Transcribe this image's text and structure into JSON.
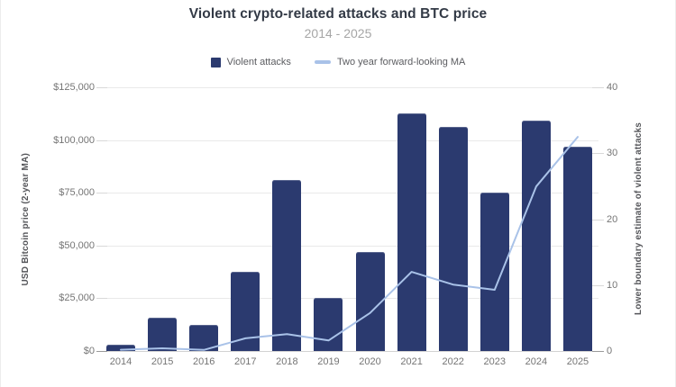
{
  "chart_data": {
    "type": "bar+line",
    "title": "Violent crypto-related attacks and BTC price",
    "subtitle": "2014 - 2025",
    "categories": [
      "2014",
      "2015",
      "2016",
      "2017",
      "2018",
      "2019",
      "2020",
      "2021",
      "2022",
      "2023",
      "2024",
      "2025"
    ],
    "series": [
      {
        "name": "Violent attacks",
        "type": "bar",
        "axis": "right",
        "color": "#2b3a6f",
        "values": [
          1,
          5,
          4,
          12,
          26,
          8,
          15,
          36,
          34,
          24,
          35,
          31
        ]
      },
      {
        "name": "Two year forward-looking MA",
        "type": "line",
        "axis": "left",
        "color": "#a9c2e8",
        "values": [
          600,
          1300,
          500,
          6000,
          8000,
          5000,
          18000,
          37500,
          31500,
          29000,
          78000,
          101500
        ]
      }
    ],
    "left_axis": {
      "label": "USD Bitcoin price (2-year MA)",
      "ticks": [
        "$125,000",
        "$100,000",
        "$75,000",
        "$50,000",
        "$25,000",
        "$0"
      ],
      "min": 0,
      "max": 125000
    },
    "right_axis": {
      "label": "Lower boundary estimate of violent attacks",
      "ticks": [
        "40",
        "30",
        "20",
        "10",
        "0"
      ],
      "min": 0,
      "max": 40
    },
    "grid": true,
    "legend_position": "top",
    "colors": {
      "title": "#333a46",
      "subtitle": "#a6a6a6",
      "axis_text": "#757575",
      "gridline": "#e9e9e9"
    }
  }
}
